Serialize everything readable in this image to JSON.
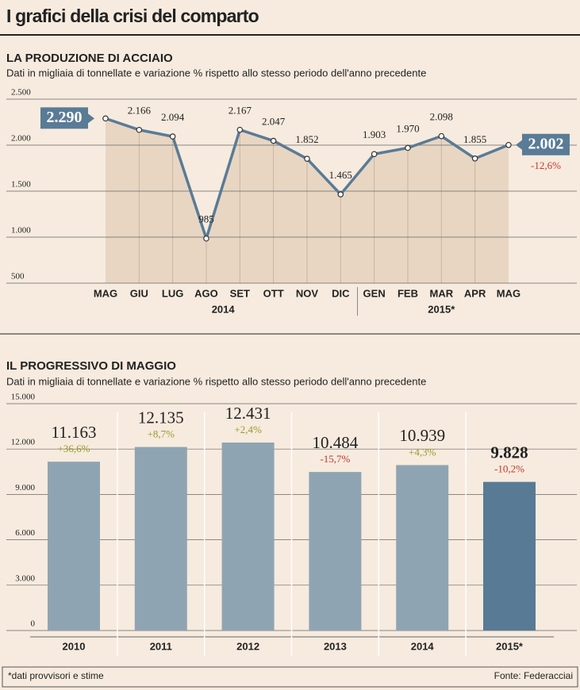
{
  "header": {
    "title": "I grafici della crisi del comparto"
  },
  "chart_data": [
    {
      "type": "line",
      "title": "LA PRODUZIONE DI ACCIAIO",
      "subtitle": "Dati in migliaia di tonnellate e variazione % rispetto allo stesso periodo dell'anno precedente",
      "categories": [
        "MAG",
        "GIU",
        "LUG",
        "AGO",
        "SET",
        "OTT",
        "NOV",
        "DIC",
        "GEN",
        "FEB",
        "MAR",
        "APR",
        "MAG"
      ],
      "years": [
        "2014",
        "2015*"
      ],
      "values": [
        2290,
        2166,
        2094,
        985,
        2167,
        2047,
        1852,
        1465,
        1903,
        1970,
        2098,
        1855,
        2002
      ],
      "value_labels": [
        "2.290",
        "2.166",
        "2.094",
        "985",
        "2.167",
        "2.047",
        "1.852",
        "1.465",
        "1.903",
        "1.970",
        "2.098",
        "1.855",
        "2.002"
      ],
      "annotation": "-12,6%",
      "color": "#5a7b96",
      "area_color": "#e8d6c3",
      "annotation_color": "#c8352b",
      "ylim": [
        500,
        2500
      ],
      "yticks": [
        {
          "value": 2500,
          "label": "2.500"
        },
        {
          "value": 2000,
          "label": "2.000"
        },
        {
          "value": 1500,
          "label": "1.500"
        },
        {
          "value": 1000,
          "label": "1.000"
        },
        500
      ],
      "grid": true
    },
    {
      "type": "bar",
      "title": "IL PROGRESSIVO DI MAGGIO",
      "subtitle": "Dati in migliaia di tonnellate e variazione % rispetto allo stesso periodo dell'anno precedente",
      "categories": [
        "2010",
        "2011",
        "2012",
        "2013",
        "2014",
        "2015*"
      ],
      "values": [
        11163,
        12135,
        12431,
        10484,
        10939,
        9828
      ],
      "value_labels": [
        "11.163",
        "12.135",
        "12.431",
        "10.484",
        "10.939",
        "9.828"
      ],
      "changes": [
        "+36,6%",
        "+8,7%",
        "+2,4%",
        "-15,7%",
        "+4,3%",
        "-10,2%"
      ],
      "change_colors": [
        "#9a9a2a",
        "#9a9a2a",
        "#9a9a2a",
        "#c8352b",
        "#9a9a2a",
        "#c8352b"
      ],
      "colors": [
        "#8fa4b3",
        "#8fa4b3",
        "#8fa4b3",
        "#8fa4b3",
        "#8fa4b3",
        "#587a95"
      ],
      "ylim": [
        0,
        15000
      ],
      "yticks": [
        {
          "value": 15000,
          "label": "15.000"
        },
        {
          "value": 12000,
          "label": "12.000"
        },
        {
          "value": 9000,
          "label": "9.000"
        },
        {
          "value": 6000,
          "label": "6.000"
        },
        {
          "value": 3000,
          "label": "3.000"
        },
        0
      ],
      "grid": true
    }
  ],
  "footer": {
    "note": "*dati provvisori e stime",
    "source": "Fonte: Federacciai"
  }
}
